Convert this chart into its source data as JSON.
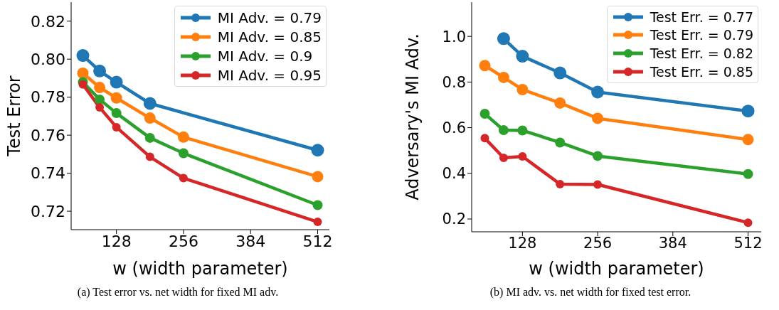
{
  "chart_data": [
    {
      "type": "line",
      "xlabel": "w (width parameter)",
      "ylabel": "Test Error",
      "x": [
        64,
        96,
        128,
        192,
        256,
        512
      ],
      "xlim": [
        41.6,
        534.4
      ],
      "xticks": [
        128,
        256,
        384,
        512
      ],
      "ylim": [
        0.7103,
        0.83
      ],
      "yticks": [
        0.72,
        0.74,
        0.76,
        0.78,
        {
          "value": 0.8,
          "label": "0.80"
        },
        0.82
      ],
      "legend": "top right",
      "grid": false,
      "marker": "circle",
      "line_style": "solid",
      "annotations": [
        "(a) Test error vs. net width for fixed MI adv."
      ],
      "series": [
        {
          "name": "MI Adv. = 0.79",
          "color": "#1f77b4",
          "x": [
            64,
            96,
            128,
            192,
            512
          ],
          "values": [
            0.8019,
            0.7938,
            0.7879,
            0.7767,
            0.7521
          ]
        },
        {
          "name": "MI Adv. = 0.85",
          "color": "#ff7f0e",
          "values": [
            0.7926,
            0.7851,
            0.7796,
            0.769,
            0.759,
            0.7382
          ]
        },
        {
          "name": "MI Adv. = 0.9",
          "color": "#2ca02c",
          "values": [
            0.7879,
            0.7788,
            0.7716,
            0.7586,
            0.7505,
            0.7232
          ]
        },
        {
          "name": "MI Adv. = 0.95",
          "color": "#d62728",
          "values": [
            0.7867,
            0.7746,
            0.7642,
            0.7486,
            0.7374,
            0.7144
          ]
        }
      ]
    },
    {
      "type": "line",
      "xlabel": "w (width parameter)",
      "ylabel": "Adversary's MI Adv.",
      "x": [
        64,
        96,
        128,
        192,
        256,
        512
      ],
      "xlim": [
        41.6,
        534.4
      ],
      "xticks": [
        128,
        256,
        384,
        512
      ],
      "ylim": [
        0.144,
        1.15
      ],
      "yticks": [
        0.2,
        0.4,
        0.6,
        0.8,
        {
          "value": 1,
          "label": "1.0"
        }
      ],
      "legend": "top right",
      "grid": false,
      "marker": "circle",
      "line_style": "solid",
      "annotations": [
        "(b) MI adv. vs. net width for fixed test error."
      ],
      "series": [
        {
          "name": "Test Err. = 0.77",
          "color": "#1f77b4",
          "x": [
            96,
            128,
            192,
            256,
            512
          ],
          "values": [
            0.99,
            0.913,
            0.84,
            0.756,
            0.673
          ]
        },
        {
          "name": "Test Err. = 0.79",
          "color": "#ff7f0e",
          "values": [
            0.872,
            0.82,
            0.767,
            0.708,
            0.641,
            0.548
          ]
        },
        {
          "name": "Test Err. = 0.82",
          "color": "#2ca02c",
          "values": [
            0.661,
            0.589,
            0.588,
            0.535,
            0.476,
            0.397
          ]
        },
        {
          "name": "Test Err. = 0.85",
          "color": "#d62728",
          "values": [
            0.554,
            0.468,
            0.474,
            0.353,
            0.351,
            0.184
          ]
        }
      ]
    }
  ]
}
